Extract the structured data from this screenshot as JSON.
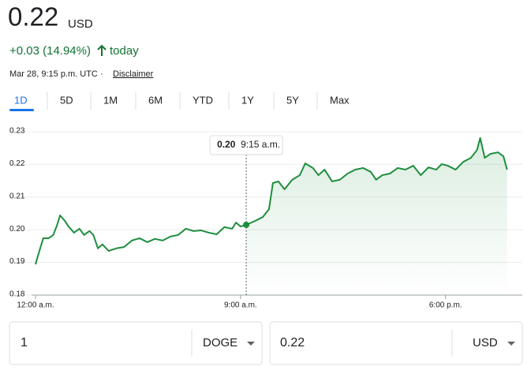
{
  "header": {
    "price": "0.22",
    "currency": "USD",
    "change": "+0.03 (14.94%)",
    "period": "today",
    "timestamp": "Mar 28, 9:15 p.m. UTC ·",
    "disclaimer": "Disclaimer"
  },
  "tabs": [
    "1D",
    "5D",
    "1M",
    "6M",
    "YTD",
    "1Y",
    "5Y",
    "Max"
  ],
  "chart_data": {
    "type": "line",
    "color": "#1e8e3e",
    "grid": true,
    "x": [
      0,
      0.17,
      0.34,
      0.58,
      0.78,
      0.95,
      1.08,
      1.29,
      1.45,
      1.69,
      1.93,
      2.13,
      2.37,
      2.54,
      2.74,
      2.94,
      3.21,
      3.55,
      3.89,
      4.23,
      4.57,
      4.91,
      5.24,
      5.58,
      5.92,
      6.26,
      6.6,
      6.94,
      7.27,
      7.61,
      7.95,
      8.29,
      8.63,
      8.8,
      9.0,
      9.25,
      9.64,
      9.98,
      10.25,
      10.42,
      10.66,
      10.93,
      11.27,
      11.6,
      11.84,
      12.18,
      12.42,
      12.69,
      13.02,
      13.36,
      13.7,
      14.04,
      14.38,
      14.72,
      14.95,
      15.22,
      15.56,
      15.9,
      16.24,
      16.58,
      16.91,
      17.25,
      17.59,
      17.83,
      18.1,
      18.44,
      18.78,
      19.11,
      19.38,
      19.52,
      19.72,
      19.96,
      20.3,
      20.54,
      20.7
    ],
    "values": [
      0.1894,
      0.1935,
      0.1974,
      0.1974,
      0.1984,
      0.2015,
      0.2044,
      0.2027,
      0.201,
      0.1991,
      0.2003,
      0.1984,
      0.1996,
      0.1984,
      0.1943,
      0.1955,
      0.1935,
      0.1943,
      0.1947,
      0.1967,
      0.1974,
      0.1962,
      0.1972,
      0.1967,
      0.1979,
      0.1984,
      0.2003,
      0.1996,
      0.1998,
      0.1991,
      0.1986,
      0.2008,
      0.2003,
      0.2022,
      0.201,
      0.2015,
      0.2027,
      0.2039,
      0.2063,
      0.2143,
      0.2148,
      0.2124,
      0.2153,
      0.2167,
      0.2203,
      0.2189,
      0.2167,
      0.2184,
      0.2148,
      0.2153,
      0.2172,
      0.2184,
      0.2189,
      0.2177,
      0.2153,
      0.2167,
      0.2172,
      0.2189,
      0.2184,
      0.2196,
      0.2167,
      0.2191,
      0.2184,
      0.2201,
      0.2196,
      0.2184,
      0.2208,
      0.222,
      0.2244,
      0.2281,
      0.222,
      0.2232,
      0.2237,
      0.2225,
      0.2184
    ],
    "xlim": [
      0,
      21.3
    ],
    "xticks": [
      {
        "value": 0,
        "label": "12:00 a.m."
      },
      {
        "value": 9,
        "label": "9:00 a.m."
      },
      {
        "value": 18,
        "label": "6:00 p.m."
      }
    ],
    "ylim": [
      0.18,
      0.23
    ],
    "yticks": [
      0.18,
      0.19,
      {
        "value": 0.2,
        "label": "0.20"
      },
      0.21,
      0.22,
      0.23
    ],
    "hover": {
      "x": 9.25,
      "y": 0.2015,
      "label": "0.20",
      "time": "9:15 a.m."
    }
  },
  "converter": {
    "from_amount": "1",
    "from_currency": "DOGE",
    "to_amount": "0.22",
    "to_currency": "USD"
  }
}
